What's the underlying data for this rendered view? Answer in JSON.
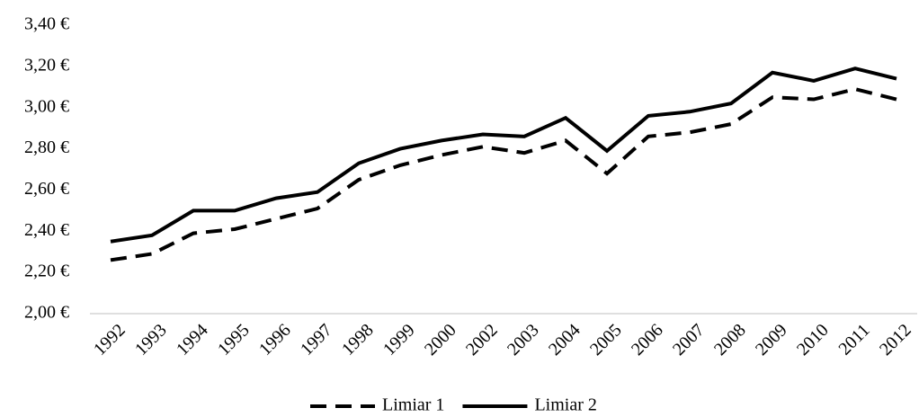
{
  "chart_data": {
    "type": "line",
    "categories": [
      "1992",
      "1993",
      "1994",
      "1995",
      "1996",
      "1997",
      "1998",
      "1999",
      "2000",
      "2002",
      "2003",
      "2004",
      "2005",
      "2006",
      "2007",
      "2008",
      "2009",
      "2010",
      "2011",
      "2012"
    ],
    "series": [
      {
        "name": "Limiar 1",
        "color": "#000000",
        "line_style": "dashed",
        "values": [
          2.26,
          2.29,
          2.39,
          2.41,
          2.46,
          2.51,
          2.65,
          2.72,
          2.77,
          2.81,
          2.78,
          2.84,
          2.68,
          2.86,
          2.88,
          2.92,
          3.05,
          3.04,
          3.09,
          3.04
        ]
      },
      {
        "name": "Limiar 2",
        "color": "#000000",
        "line_style": "solid",
        "values": [
          2.35,
          2.38,
          2.5,
          2.5,
          2.56,
          2.59,
          2.73,
          2.8,
          2.84,
          2.87,
          2.86,
          2.95,
          2.79,
          2.96,
          2.98,
          3.02,
          3.17,
          3.13,
          3.19,
          3.14
        ]
      }
    ],
    "ylim": [
      2.0,
      3.4
    ],
    "yticks": [
      {
        "value": 2.0,
        "label": "2,00 €"
      },
      {
        "value": 2.2,
        "label": "2,20 €"
      },
      {
        "value": 2.4,
        "label": "2,40 €"
      },
      {
        "value": 2.6,
        "label": "2,60 €"
      },
      {
        "value": 2.8,
        "label": "2,80 €"
      },
      {
        "value": 3.0,
        "label": "3,00 €"
      },
      {
        "value": 3.2,
        "label": "3,20 €"
      },
      {
        "value": 3.4,
        "label": "3,40 €"
      }
    ],
    "grid": false,
    "legend": "bottom"
  }
}
